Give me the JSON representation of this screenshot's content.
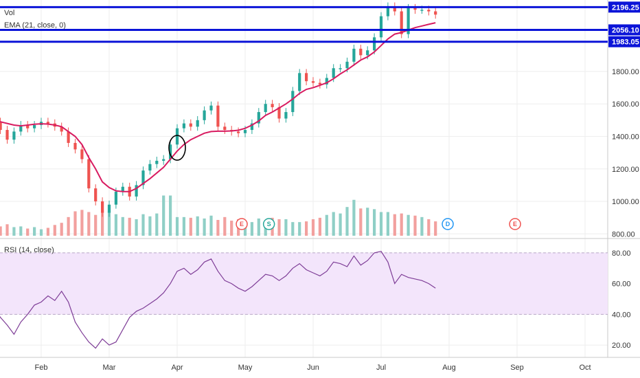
{
  "indicators": {
    "vol_label": "Vol",
    "ema_label": "EMA (21, close, 0)",
    "rsi_label": "RSI (14, close)"
  },
  "colors": {
    "up": "#26a69a",
    "down": "#ef5350",
    "vol_up": "#8fcfc6",
    "vol_down": "#f2a09e",
    "ema": "#d81b60",
    "rsi": "#7e3d97",
    "rsi_band": "#f3e5fb",
    "hline": "#0b14d8",
    "grid": "#eeeeee"
  },
  "chart_data": {
    "type": "candlestick",
    "x_ticks": [
      "Feb",
      "Mar",
      "Apr",
      "May",
      "Jun",
      "Jul",
      "Aug",
      "Sep",
      "Oct"
    ],
    "price_axis": {
      "min": 780,
      "max": 2240,
      "ticks": [
        "800.00",
        "1000.00",
        "1200.00",
        "1400.00",
        "1600.00",
        "1800.00"
      ],
      "tick_values": [
        800,
        1000,
        1200,
        1400,
        1600,
        1800
      ]
    },
    "horizontal_lines": [
      {
        "value": 2196.25,
        "label": "2196.25"
      },
      {
        "value": 2056.1,
        "label": "2056.10"
      },
      {
        "value": 1983.05,
        "label": "1983.05"
      }
    ],
    "price_series": {
      "days_per_point": 3,
      "start_month_offset": -1.0,
      "close": [
        1580,
        1510,
        1500,
        1490,
        1440,
        1380,
        1430,
        1470,
        1450,
        1470,
        1490,
        1480,
        1460,
        1430,
        1360,
        1320,
        1260,
        1080,
        1000,
        930,
        980,
        1060,
        1090,
        1030,
        1100,
        1190,
        1230,
        1250,
        1260,
        1350,
        1450,
        1480,
        1460,
        1500,
        1560,
        1590,
        1460,
        1440,
        1430,
        1420,
        1440,
        1480,
        1550,
        1600,
        1580,
        1510,
        1550,
        1680,
        1790,
        1740,
        1730,
        1720,
        1760,
        1820,
        1820,
        1860,
        1940,
        1900,
        1930,
        2010,
        2140,
        2200,
        2170,
        2030,
        2190,
        2180,
        2180,
        2170,
        2150
      ],
      "ema": [
        1520,
        1515,
        1510,
        1500,
        1490,
        1480,
        1470,
        1465,
        1470,
        1475,
        1478,
        1476,
        1470,
        1460,
        1430,
        1400,
        1350,
        1270,
        1200,
        1120,
        1085,
        1065,
        1060,
        1060,
        1080,
        1110,
        1140,
        1175,
        1210,
        1260,
        1310,
        1350,
        1380,
        1400,
        1420,
        1430,
        1432,
        1432,
        1434,
        1438,
        1450,
        1470,
        1495,
        1530,
        1550,
        1575,
        1600,
        1630,
        1665,
        1690,
        1700,
        1715,
        1730,
        1755,
        1785,
        1810,
        1840,
        1870,
        1890,
        1920,
        1960,
        2000,
        2030,
        2040,
        2055,
        2070,
        2080,
        2090,
        2100
      ]
    },
    "volume": {
      "max": 1000,
      "values": [
        120,
        90,
        100,
        80,
        130,
        160,
        120,
        130,
        100,
        120,
        90,
        110,
        150,
        180,
        260,
        340,
        360,
        330,
        290,
        360,
        340,
        300,
        260,
        250,
        230,
        300,
        270,
        310,
        560,
        560,
        260,
        260,
        250,
        270,
        240,
        280,
        220,
        260,
        210,
        230,
        200,
        190,
        240,
        210,
        250,
        230,
        230,
        190,
        190,
        200,
        230,
        250,
        290,
        330,
        310,
        400,
        500,
        380,
        390,
        370,
        330,
        330,
        300,
        310,
        290,
        280,
        260,
        230,
        200
      ]
    },
    "event_markers": [
      {
        "label": "E",
        "month": 2.95,
        "color": "#ef5350"
      },
      {
        "label": "S",
        "month": 3.35,
        "color": "#26a69a"
      },
      {
        "label": "D",
        "month": 5.98,
        "color": "#2196f3"
      },
      {
        "label": "E",
        "month": 6.97,
        "color": "#ef5350"
      }
    ],
    "rsi": {
      "min": 12,
      "max": 88,
      "band": [
        40,
        80
      ],
      "ticks": [
        "20.00",
        "40.00",
        "60.00",
        "80.00"
      ],
      "tick_values": [
        20,
        40,
        60,
        80
      ],
      "values": [
        60,
        50,
        48,
        45,
        38,
        33,
        27,
        35,
        40,
        46,
        48,
        52,
        49,
        55,
        48,
        35,
        28,
        22,
        18,
        24,
        20,
        22,
        30,
        38,
        42,
        44,
        47,
        50,
        54,
        60,
        68,
        70,
        66,
        69,
        74,
        76,
        68,
        62,
        60,
        57,
        55,
        58,
        62,
        66,
        65,
        62,
        65,
        70,
        73,
        69,
        67,
        65,
        68,
        74,
        73,
        71,
        78,
        72,
        75,
        80,
        81,
        74,
        60,
        66,
        64,
        63,
        62,
        60,
        57
      ]
    }
  }
}
